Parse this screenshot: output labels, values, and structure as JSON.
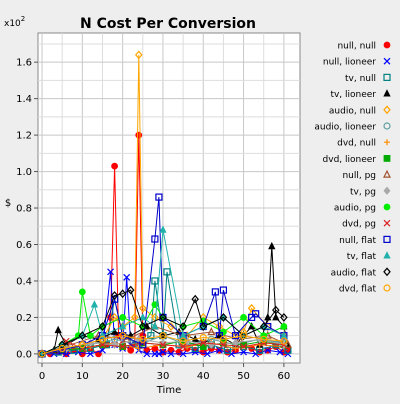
{
  "chart_data": {
    "type": "line",
    "title": "N Cost Per Conversion",
    "xlabel": "Time",
    "ylabel": "$",
    "y_multiplier_label": "x10",
    "y_multiplier_exp": "2",
    "xlim": [
      -1,
      64
    ],
    "ylim": [
      -0.05,
      1.76
    ],
    "x_ticks": [
      0,
      10,
      20,
      30,
      40,
      50,
      60
    ],
    "y_ticks": [
      0.0,
      0.2,
      0.4,
      0.6,
      0.8,
      1.0,
      1.2,
      1.4,
      1.6
    ],
    "y_tick_labels": [
      "0.0",
      "0.2",
      "0.4",
      "0.6",
      "0.8",
      "1.0",
      "1.2",
      "1.4",
      "1.6"
    ],
    "grid": true,
    "legend_position": "right",
    "series": [
      {
        "name": "null, null",
        "color": "#ff0000",
        "marker": "circle-filled",
        "x": [
          0,
          2,
          4,
          6,
          8,
          10,
          12,
          14,
          16,
          17,
          18,
          19,
          20,
          22,
          23,
          24,
          25,
          26,
          28,
          30,
          32,
          34,
          36,
          38,
          40,
          42,
          44,
          46,
          48,
          50,
          52,
          54,
          56,
          58,
          60,
          61
        ],
        "y": [
          0,
          0,
          0.01,
          0,
          0.02,
          0,
          0.03,
          0,
          0.05,
          0.2,
          1.03,
          0.1,
          0.05,
          0.02,
          0.05,
          1.2,
          0.1,
          0.02,
          0.03,
          0.01,
          0.02,
          0.01,
          0.03,
          0.02,
          0.01,
          0.03,
          0.02,
          0.01,
          0.02,
          0.05,
          0.03,
          0.01,
          0.02,
          0.04,
          0.01,
          0.02
        ]
      },
      {
        "name": "null, lioneer",
        "color": "#0000ff",
        "marker": "x",
        "x": [
          0,
          3,
          6,
          9,
          12,
          15,
          17,
          18,
          20,
          21,
          22,
          24,
          26,
          28,
          29,
          30,
          32,
          35,
          38,
          41,
          44,
          47,
          50,
          53,
          56,
          59,
          61
        ],
        "y": [
          0,
          0,
          0,
          0.01,
          0,
          0.02,
          0.45,
          0.05,
          0.03,
          0.42,
          0.05,
          0.02,
          0,
          0,
          0,
          0.01,
          0,
          0,
          0.01,
          0,
          0.02,
          0,
          0.01,
          0,
          0.02,
          0.01,
          0
        ]
      },
      {
        "name": "tv, null",
        "color": "#008080",
        "marker": "square",
        "x": [
          0,
          4,
          8,
          12,
          16,
          18,
          20,
          24,
          27,
          28,
          30,
          31,
          34,
          38,
          42,
          46,
          50,
          54,
          58,
          61
        ],
        "y": [
          0,
          0.01,
          0.02,
          0.03,
          0.05,
          0.3,
          0.1,
          0.05,
          0.1,
          0.4,
          0.1,
          0.45,
          0.05,
          0.03,
          0.05,
          0.02,
          0.04,
          0.02,
          0.05,
          0.02
        ]
      },
      {
        "name": "tv, lioneer",
        "color": "#000000",
        "marker": "triangle-filled",
        "x": [
          0,
          3,
          4,
          6,
          10,
          14,
          18,
          22,
          26,
          30,
          34,
          38,
          40,
          44,
          48,
          52,
          54,
          56,
          57,
          58,
          60,
          61
        ],
        "y": [
          0,
          0.02,
          0.13,
          0.05,
          0.1,
          0.08,
          0.12,
          0.1,
          0.15,
          0.1,
          0.12,
          0.08,
          0.06,
          0.1,
          0.05,
          0.15,
          0.05,
          0.2,
          0.59,
          0.2,
          0.15,
          0.05
        ]
      },
      {
        "name": "audio, null",
        "color": "#ffa500",
        "marker": "diamond",
        "x": [
          0,
          5,
          10,
          15,
          18,
          20,
          23,
          24,
          25,
          28,
          32,
          36,
          40,
          44,
          48,
          50,
          52,
          56,
          60
        ],
        "y": [
          0,
          0.02,
          0.05,
          0.08,
          0.2,
          0.15,
          0.2,
          1.64,
          0.25,
          0.2,
          0.15,
          0.1,
          0.2,
          0.15,
          0.1,
          0.12,
          0.25,
          0.15,
          0.1
        ]
      },
      {
        "name": "audio, lioneer",
        "color": "#5f9ea0",
        "marker": "circle",
        "x": [
          0,
          6,
          12,
          18,
          24,
          30,
          36,
          42,
          48,
          54,
          60
        ],
        "y": [
          0,
          0.03,
          0.05,
          0.08,
          0.05,
          0.1,
          0.05,
          0.08,
          0.05,
          0.08,
          0.06
        ]
      },
      {
        "name": "dvd, null",
        "color": "#ff8c00",
        "marker": "plus",
        "x": [
          0,
          6,
          12,
          18,
          24,
          30,
          36,
          42,
          48,
          54,
          60
        ],
        "y": [
          0,
          0.02,
          0.04,
          0.06,
          0.03,
          0.05,
          0.04,
          0.06,
          0.03,
          0.05,
          0.04
        ]
      },
      {
        "name": "dvd, lioneer",
        "color": "#00aa00",
        "marker": "square-filled",
        "x": [
          0,
          5,
          10,
          15,
          20,
          25,
          30,
          35,
          40,
          45,
          50,
          55,
          60
        ],
        "y": [
          0,
          0.02,
          0.03,
          0.05,
          0.04,
          0.06,
          0.05,
          0.07,
          0.04,
          0.06,
          0.05,
          0.07,
          0.05
        ]
      },
      {
        "name": "null, pg",
        "color": "#a0522d",
        "marker": "triangle",
        "x": [
          0,
          7,
          14,
          21,
          28,
          35,
          42,
          49,
          56,
          61
        ],
        "y": [
          0,
          0.05,
          0.1,
          0.08,
          0.15,
          0.1,
          0.12,
          0.08,
          0.1,
          0.05
        ]
      },
      {
        "name": "tv, pg",
        "color": "#a9a9a9",
        "marker": "diamond-filled",
        "x": [
          0,
          6,
          12,
          18,
          24,
          30,
          36,
          42,
          48,
          54,
          60
        ],
        "y": [
          0,
          0.03,
          0.06,
          0.05,
          0.08,
          0.06,
          0.07,
          0.05,
          0.06,
          0.08,
          0.05
        ]
      },
      {
        "name": "audio, pg",
        "color": "#00ee00",
        "marker": "circle-filled",
        "x": [
          0,
          5,
          9,
          10,
          12,
          15,
          20,
          25,
          28,
          30,
          35,
          40,
          45,
          50,
          55,
          60
        ],
        "y": [
          0,
          0.05,
          0.1,
          0.34,
          0.1,
          0.15,
          0.2,
          0.15,
          0.27,
          0.2,
          0.15,
          0.18,
          0.12,
          0.2,
          0.1,
          0.15
        ]
      },
      {
        "name": "dvd, pg",
        "color": "#dd2222",
        "marker": "x",
        "x": [
          0,
          5,
          6,
          10,
          15,
          20,
          25,
          30,
          35,
          40,
          45,
          50,
          55,
          60
        ],
        "y": [
          0,
          0.02,
          0.07,
          0.03,
          0.05,
          0.04,
          0.06,
          0.05,
          0.04,
          0.06,
          0.05,
          0.04,
          0.06,
          0.05
        ]
      },
      {
        "name": "null, flat",
        "color": "#0000cc",
        "marker": "square",
        "x": [
          0,
          5,
          10,
          15,
          18,
          20,
          25,
          28,
          29,
          30,
          35,
          40,
          43,
          44,
          45,
          48,
          52,
          53,
          56,
          60
        ],
        "y": [
          0,
          0.02,
          0.05,
          0.1,
          0.3,
          0.1,
          0.05,
          0.63,
          0.86,
          0.2,
          0.1,
          0.15,
          0.34,
          0.1,
          0.35,
          0.1,
          0.2,
          0.22,
          0.15,
          0.1
        ]
      },
      {
        "name": "tv, flat",
        "color": "#20b2aa",
        "marker": "triangle-filled",
        "x": [
          0,
          5,
          10,
          13,
          15,
          20,
          25,
          28,
          30,
          35,
          40,
          45,
          50,
          55,
          60
        ],
        "y": [
          0,
          0.05,
          0.1,
          0.27,
          0.1,
          0.15,
          0.2,
          0.15,
          0.68,
          0.1,
          0.15,
          0.2,
          0.1,
          0.15,
          0.1
        ]
      },
      {
        "name": "audio, flat",
        "color": "#000000",
        "marker": "diamond",
        "x": [
          0,
          5,
          10,
          15,
          18,
          20,
          22,
          25,
          30,
          35,
          38,
          40,
          45,
          50,
          55,
          58,
          60
        ],
        "y": [
          0,
          0.05,
          0.1,
          0.15,
          0.32,
          0.33,
          0.35,
          0.15,
          0.2,
          0.15,
          0.3,
          0.15,
          0.2,
          0.1,
          0.15,
          0.24,
          0.2
        ]
      },
      {
        "name": "dvd, flat",
        "color": "#ffa500",
        "marker": "circle",
        "x": [
          0,
          5,
          10,
          15,
          20,
          25,
          30,
          35,
          40,
          45,
          50,
          55,
          60
        ],
        "y": [
          0,
          0.03,
          0.05,
          0.08,
          0.1,
          0.08,
          0.1,
          0.07,
          0.09,
          0.08,
          0.1,
          0.08,
          0.07
        ]
      }
    ]
  }
}
